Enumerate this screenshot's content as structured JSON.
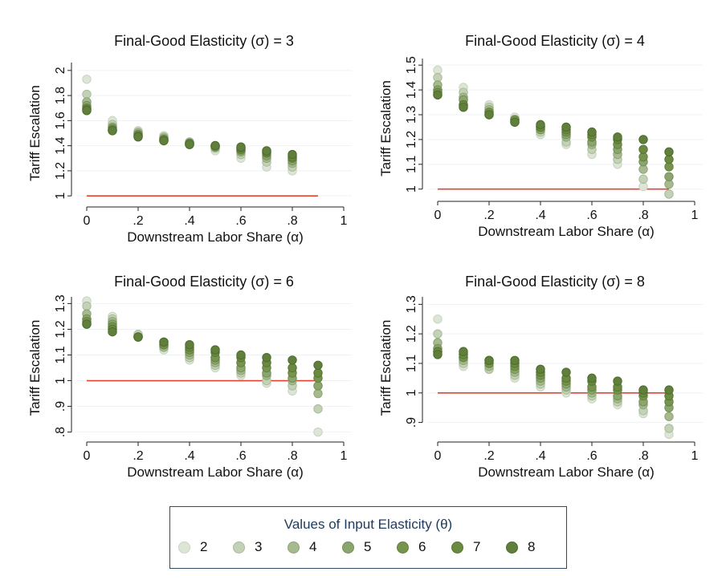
{
  "colors": {
    "theta": [
      "#dde6d6",
      "#c3d1b6",
      "#a6b98f",
      "#8ba56f",
      "#77944f",
      "#6a8a40",
      "#5f7f3a"
    ],
    "theta_stroke": [
      "#c8d4bf",
      "#a9bb9a",
      "#8da474",
      "#738f57",
      "#62803d",
      "#567533",
      "#4d6c2e"
    ],
    "reference_line": "#e8412f",
    "grid": "#eef1f3"
  },
  "legend": {
    "title": "Values of Input Elasticity (θ)",
    "items": [
      {
        "label": "2"
      },
      {
        "label": "3"
      },
      {
        "label": "4"
      },
      {
        "label": "5"
      },
      {
        "label": "6"
      },
      {
        "label": "7"
      },
      {
        "label": "8"
      }
    ]
  },
  "chart_data": [
    {
      "type": "scatter",
      "title": "Final-Good Elasticity (σ) = 3",
      "xlabel": "Downstream Labor Share (α)",
      "ylabel": "Tariff Escalation",
      "xlim": [
        0,
        1
      ],
      "ylim": [
        0.95,
        2.05
      ],
      "xticks": [
        0,
        0.2,
        0.4,
        0.6,
        0.8,
        1
      ],
      "xtick_labels": [
        "0",
        ".2",
        ".4",
        ".6",
        ".8",
        "1"
      ],
      "yticks": [
        1,
        1.2,
        1.4,
        1.6,
        1.8,
        2
      ],
      "ytick_labels": [
        "1",
        "1.2",
        "1.4",
        "1.6",
        "1.8",
        "2"
      ],
      "reference_line": {
        "y": 1,
        "x": [
          0,
          0.9
        ]
      },
      "x": [
        0,
        0.1,
        0.2,
        0.3,
        0.4,
        0.5,
        0.6,
        0.7,
        0.8
      ],
      "series": [
        {
          "name": "2",
          "values": [
            1.93,
            1.6,
            1.52,
            1.48,
            1.43,
            1.36,
            1.3,
            1.23,
            1.2
          ]
        },
        {
          "name": "3",
          "values": [
            1.81,
            1.57,
            1.51,
            1.47,
            1.43,
            1.38,
            1.33,
            1.27,
            1.23
          ]
        },
        {
          "name": "4",
          "values": [
            1.75,
            1.55,
            1.5,
            1.46,
            1.42,
            1.39,
            1.35,
            1.3,
            1.26
          ]
        },
        {
          "name": "5",
          "values": [
            1.72,
            1.54,
            1.49,
            1.45,
            1.42,
            1.39,
            1.36,
            1.32,
            1.28
          ]
        },
        {
          "name": "6",
          "values": [
            1.7,
            1.53,
            1.48,
            1.45,
            1.42,
            1.4,
            1.37,
            1.34,
            1.3
          ]
        },
        {
          "name": "7",
          "values": [
            1.69,
            1.52,
            1.48,
            1.44,
            1.41,
            1.4,
            1.38,
            1.35,
            1.31
          ]
        },
        {
          "name": "8",
          "values": [
            1.68,
            1.52,
            1.47,
            1.44,
            1.41,
            1.4,
            1.39,
            1.36,
            1.33
          ]
        }
      ]
    },
    {
      "type": "scatter",
      "title": "Final-Good Elasticity (σ) = 4",
      "xlabel": "Downstream Labor Share (α)",
      "ylabel": "Tariff Escalation",
      "xlim": [
        0,
        1
      ],
      "ylim": [
        0.97,
        1.52
      ],
      "xticks": [
        0,
        0.2,
        0.4,
        0.6,
        0.8,
        1
      ],
      "xtick_labels": [
        "0",
        ".2",
        ".4",
        ".6",
        ".8",
        "1"
      ],
      "yticks": [
        1,
        1.1,
        1.2,
        1.3,
        1.4,
        1.5
      ],
      "ytick_labels": [
        "1",
        "1.1",
        "1.2",
        "1.3",
        "1.4",
        "1.5"
      ],
      "reference_line": {
        "y": 1,
        "x": [
          0,
          0.9
        ]
      },
      "x": [
        0,
        0.1,
        0.2,
        0.3,
        0.4,
        0.5,
        0.6,
        0.7,
        0.8,
        0.9
      ],
      "series": [
        {
          "name": "2",
          "values": [
            1.48,
            1.41,
            1.34,
            1.29,
            1.22,
            1.18,
            1.14,
            1.1,
            1.01,
            0.98
          ]
        },
        {
          "name": "3",
          "values": [
            1.45,
            1.39,
            1.33,
            1.28,
            1.23,
            1.19,
            1.16,
            1.12,
            1.04,
            0.98
          ]
        },
        {
          "name": "4",
          "values": [
            1.42,
            1.37,
            1.32,
            1.28,
            1.24,
            1.21,
            1.18,
            1.14,
            1.08,
            1.02
          ]
        },
        {
          "name": "5",
          "values": [
            1.4,
            1.36,
            1.31,
            1.28,
            1.24,
            1.22,
            1.19,
            1.16,
            1.11,
            1.05
          ]
        },
        {
          "name": "6",
          "values": [
            1.39,
            1.34,
            1.31,
            1.28,
            1.25,
            1.23,
            1.21,
            1.18,
            1.13,
            1.09
          ]
        },
        {
          "name": "7",
          "values": [
            1.38,
            1.34,
            1.3,
            1.27,
            1.25,
            1.24,
            1.22,
            1.2,
            1.16,
            1.12
          ]
        },
        {
          "name": "8",
          "values": [
            1.38,
            1.33,
            1.3,
            1.27,
            1.26,
            1.25,
            1.23,
            1.21,
            1.2,
            1.15
          ]
        }
      ]
    },
    {
      "type": "scatter",
      "title": "Final-Good Elasticity (σ) = 6",
      "xlabel": "Downstream Labor Share (α)",
      "ylabel": "Tariff Escalation",
      "xlim": [
        0,
        1
      ],
      "ylim": [
        0.78,
        1.32
      ],
      "xticks": [
        0,
        0.2,
        0.4,
        0.6,
        0.8,
        1
      ],
      "xtick_labels": [
        "0",
        ".2",
        ".4",
        ".6",
        ".8",
        "1"
      ],
      "yticks": [
        0.8,
        0.9,
        1,
        1.1,
        1.2,
        1.3
      ],
      "ytick_labels": [
        ".8",
        ".9",
        "1",
        "1.1",
        "1.2",
        "1.3"
      ],
      "reference_line": {
        "y": 1,
        "x": [
          0,
          0.9
        ]
      },
      "x": [
        0,
        0.1,
        0.2,
        0.3,
        0.4,
        0.5,
        0.6,
        0.7,
        0.8,
        0.9
      ],
      "series": [
        {
          "name": "2",
          "values": [
            1.31,
            1.25,
            1.18,
            1.12,
            1.08,
            1.05,
            1.02,
            0.99,
            0.96,
            0.8
          ]
        },
        {
          "name": "3",
          "values": [
            1.29,
            1.24,
            1.18,
            1.13,
            1.09,
            1.06,
            1.03,
            1.0,
            0.98,
            0.89
          ]
        },
        {
          "name": "4",
          "values": [
            1.26,
            1.23,
            1.17,
            1.13,
            1.1,
            1.07,
            1.04,
            1.02,
            1.0,
            0.95
          ]
        },
        {
          "name": "5",
          "values": [
            1.24,
            1.22,
            1.17,
            1.14,
            1.11,
            1.08,
            1.05,
            1.03,
            1.01,
            0.98
          ]
        },
        {
          "name": "6",
          "values": [
            1.23,
            1.21,
            1.17,
            1.14,
            1.12,
            1.09,
            1.07,
            1.05,
            1.03,
            1.01
          ]
        },
        {
          "name": "7",
          "values": [
            1.22,
            1.2,
            1.17,
            1.15,
            1.13,
            1.11,
            1.09,
            1.07,
            1.05,
            1.03
          ]
        },
        {
          "name": "8",
          "values": [
            1.22,
            1.19,
            1.17,
            1.15,
            1.14,
            1.12,
            1.1,
            1.09,
            1.08,
            1.06
          ]
        }
      ]
    },
    {
      "type": "scatter",
      "title": "Final-Good Elasticity (σ) = 8",
      "xlabel": "Downstream Labor Share (α)",
      "ylabel": "Tariff Escalation",
      "xlim": [
        0,
        1
      ],
      "ylim": [
        0.85,
        1.32
      ],
      "xticks": [
        0,
        0.2,
        0.4,
        0.6,
        0.8,
        1
      ],
      "xtick_labels": [
        "0",
        ".2",
        ".4",
        ".6",
        ".8",
        "1"
      ],
      "yticks": [
        0.9,
        1,
        1.1,
        1.2,
        1.3
      ],
      "ytick_labels": [
        ".9",
        "1",
        "1.1",
        "1.2",
        "1.3"
      ],
      "reference_line": {
        "y": 1,
        "x": [
          0,
          0.9
        ]
      },
      "x": [
        0,
        0.1,
        0.2,
        0.3,
        0.4,
        0.5,
        0.6,
        0.7,
        0.8,
        0.9
      ],
      "series": [
        {
          "name": "2",
          "values": [
            1.25,
            1.09,
            1.08,
            1.05,
            1.02,
            1.0,
            0.98,
            0.96,
            0.93,
            0.86
          ]
        },
        {
          "name": "3",
          "values": [
            1.2,
            1.1,
            1.08,
            1.06,
            1.03,
            1.01,
            0.99,
            0.97,
            0.94,
            0.88
          ]
        },
        {
          "name": "4",
          "values": [
            1.17,
            1.11,
            1.09,
            1.07,
            1.04,
            1.02,
            1.0,
            0.98,
            0.96,
            0.92
          ]
        },
        {
          "name": "5",
          "values": [
            1.15,
            1.12,
            1.1,
            1.08,
            1.05,
            1.03,
            1.01,
            0.99,
            0.97,
            0.95
          ]
        },
        {
          "name": "6",
          "values": [
            1.14,
            1.12,
            1.1,
            1.09,
            1.06,
            1.04,
            1.02,
            1.01,
            0.99,
            0.97
          ]
        },
        {
          "name": "7",
          "values": [
            1.14,
            1.13,
            1.11,
            1.1,
            1.07,
            1.05,
            1.04,
            1.02,
            1.0,
            0.99
          ]
        },
        {
          "name": "8",
          "values": [
            1.13,
            1.14,
            1.11,
            1.11,
            1.08,
            1.07,
            1.05,
            1.04,
            1.01,
            1.01
          ]
        }
      ]
    }
  ]
}
